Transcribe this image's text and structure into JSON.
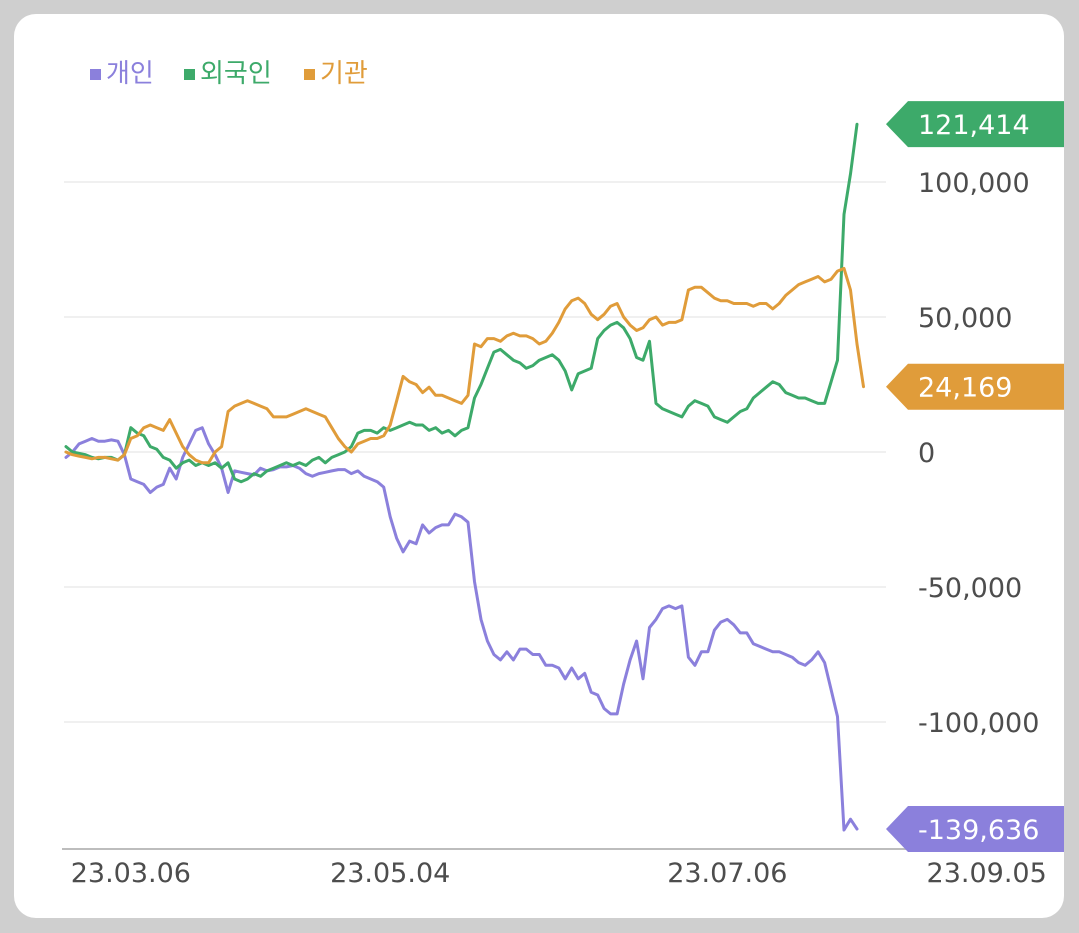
{
  "chart_data": {
    "type": "line",
    "legend": {
      "placement": "top-left"
    },
    "grid": true,
    "ylim": [
      -145000,
      130000
    ],
    "y_ticks": [
      100000,
      50000,
      0,
      -50000,
      -100000
    ],
    "y_tick_labels": [
      "100,000",
      "50,000",
      "0",
      "-50,000",
      "-100,000"
    ],
    "x_tick_labels": [
      "23.03.06",
      "23.05.04",
      "23.07.06",
      "23.09.05"
    ],
    "x_tick_index": [
      10,
      50,
      102,
      142
    ],
    "series": [
      {
        "name": "개인",
        "color": "#8b80dc",
        "last_label": "-139,636",
        "values": [
          -2000,
          0,
          3000,
          4000,
          5000,
          4000,
          4000,
          4500,
          4000,
          -1000,
          -10000,
          -11000,
          -12000,
          -15000,
          -13000,
          -12000,
          -6000,
          -10000,
          -2000,
          3000,
          8000,
          9000,
          3000,
          -1000,
          -6000,
          -15000,
          -7000,
          -7500,
          -8000,
          -8500,
          -6000,
          -7000,
          -6500,
          -5500,
          -5500,
          -5000,
          -6000,
          -8000,
          -9000,
          -8000,
          -7500,
          -7000,
          -6500,
          -6500,
          -8000,
          -7000,
          -9000,
          -10000,
          -11000,
          -13000,
          -24000,
          -32000,
          -37000,
          -33000,
          -34000,
          -27000,
          -30000,
          -28000,
          -27000,
          -27000,
          -23000,
          -24000,
          -26000,
          -48000,
          -62000,
          -70000,
          -75000,
          -77000,
          -74000,
          -77000,
          -73000,
          -73000,
          -75000,
          -75000,
          -79000,
          -79000,
          -80000,
          -84000,
          -80000,
          -84000,
          -82000,
          -89000,
          -90000,
          -95000,
          -97000,
          -97000,
          -86000,
          -77000,
          -70000,
          -84000,
          -65000,
          -62000,
          -58000,
          -57000,
          -58000,
          -57000,
          -76000,
          -79000,
          -74000,
          -74000,
          -66000,
          -63000,
          -62000,
          -64000,
          -67000,
          -67000,
          -71000,
          -72000,
          -73000,
          -74000,
          -74000,
          -75000,
          -76000,
          -78000,
          -79000,
          -77000,
          -74000,
          -78000,
          -88000,
          -98000,
          -140000,
          -136000,
          -139636
        ]
      },
      {
        "name": "외국인",
        "color": "#3daa6a",
        "last_label": "121,414",
        "values": [
          2000,
          0,
          -500,
          -1000,
          -2000,
          -2500,
          -2000,
          -2000,
          -3000,
          -1000,
          9000,
          7000,
          6000,
          2000,
          1000,
          -2000,
          -3000,
          -6000,
          -4000,
          -3000,
          -5000,
          -4000,
          -5000,
          -4000,
          -6000,
          -4000,
          -10000,
          -11000,
          -10000,
          -8000,
          -9000,
          -7000,
          -6000,
          -5000,
          -4000,
          -5000,
          -4000,
          -5000,
          -3000,
          -2000,
          -4000,
          -2000,
          -1000,
          0,
          2000,
          7000,
          8000,
          8000,
          7000,
          9000,
          8000,
          9000,
          10000,
          11000,
          10000,
          10000,
          8000,
          9000,
          7000,
          8000,
          6000,
          8000,
          9000,
          20000,
          25000,
          31000,
          37000,
          38000,
          36000,
          34000,
          33000,
          31000,
          32000,
          34000,
          35000,
          36000,
          34000,
          30000,
          23000,
          29000,
          30000,
          31000,
          42000,
          45000,
          47000,
          48000,
          46000,
          42000,
          35000,
          34000,
          41000,
          18000,
          16000,
          15000,
          14000,
          13000,
          17000,
          19000,
          18000,
          17000,
          13000,
          12000,
          11000,
          13000,
          15000,
          16000,
          20000,
          22000,
          24000,
          26000,
          25000,
          22000,
          21000,
          20000,
          20000,
          19000,
          18000,
          18000,
          26000,
          34000,
          88000,
          103000,
          121414
        ]
      },
      {
        "name": "기관",
        "color": "#e09c3a",
        "last_label": "24,169",
        "values": [
          0,
          -1000,
          -1500,
          -2000,
          -2500,
          -2000,
          -2000,
          -2500,
          -3000,
          -1000,
          5000,
          6000,
          9000,
          10000,
          9000,
          8000,
          12000,
          7000,
          2000,
          -1000,
          -3000,
          -4000,
          -4000,
          0,
          2000,
          15000,
          17000,
          18000,
          19000,
          18000,
          17000,
          16000,
          13000,
          13000,
          13000,
          14000,
          15000,
          16000,
          15000,
          14000,
          13000,
          9000,
          5000,
          2000,
          0,
          3000,
          4000,
          5000,
          5000,
          6000,
          10000,
          19000,
          28000,
          26000,
          25000,
          22000,
          24000,
          21000,
          21000,
          20000,
          19000,
          18000,
          21000,
          40000,
          39000,
          42000,
          42000,
          41000,
          43000,
          44000,
          43000,
          43000,
          42000,
          40000,
          41000,
          44000,
          48000,
          53000,
          56000,
          57000,
          55000,
          51000,
          49000,
          51000,
          54000,
          55000,
          50000,
          47000,
          45000,
          46000,
          49000,
          50000,
          47000,
          48000,
          48000,
          49000,
          60000,
          61000,
          61000,
          59000,
          57000,
          56000,
          56000,
          55000,
          55000,
          55000,
          54000,
          55000,
          55000,
          53000,
          55000,
          58000,
          60000,
          62000,
          63000,
          64000,
          65000,
          63000,
          64000,
          67000,
          68000,
          60000,
          40000,
          24169
        ]
      }
    ]
  }
}
